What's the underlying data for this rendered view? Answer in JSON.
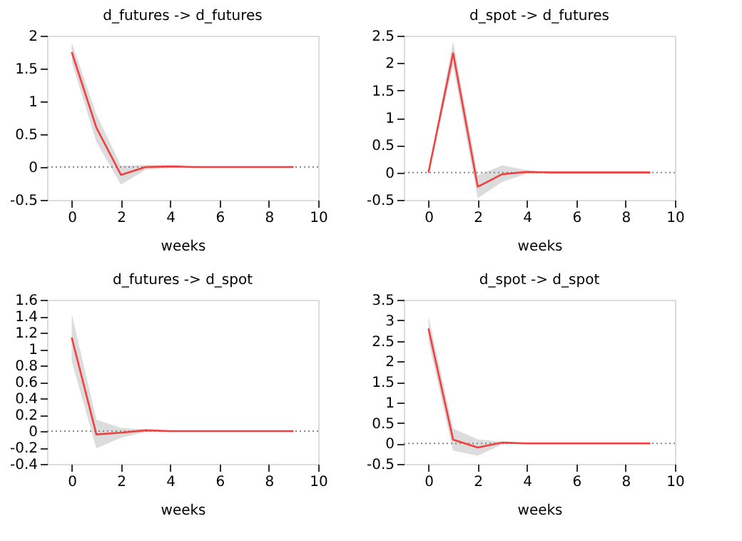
{
  "chart_data": [
    {
      "type": "line",
      "title": "d_futures -> d_futures",
      "xlabel": "weeks",
      "x": [
        0,
        1,
        2,
        3,
        4,
        5,
        6,
        7,
        8,
        9
      ],
      "xlim": [
        -1,
        10
      ],
      "xticks": [
        0,
        2,
        4,
        6,
        8,
        10
      ],
      "ylim": [
        -0.5,
        2
      ],
      "yticks": [
        -0.5,
        0,
        0.5,
        1,
        1.5,
        2
      ],
      "grid": false,
      "ref_lines": [
        {
          "axis": "y",
          "value": 0,
          "color": "#888888",
          "line_style": "dotted"
        }
      ],
      "series": [
        {
          "color": "#f04040",
          "values": [
            1.75,
            0.6,
            -0.12,
            0.0,
            0.01,
            0,
            0,
            0,
            0,
            0
          ],
          "lower": [
            1.6,
            0.38,
            -0.27,
            -0.04,
            -0.01,
            0,
            0,
            0,
            0,
            0
          ],
          "upper": [
            1.9,
            0.8,
            0.02,
            0.03,
            0.02,
            0,
            0,
            0,
            0,
            0
          ]
        }
      ]
    },
    {
      "type": "line",
      "title": "d_spot -> d_futures",
      "xlabel": "weeks",
      "x": [
        0,
        1,
        2,
        3,
        4,
        5,
        6,
        7,
        8,
        9
      ],
      "xlim": [
        -1,
        10
      ],
      "xticks": [
        0,
        2,
        4,
        6,
        8,
        10
      ],
      "ylim": [
        -0.5,
        2.5
      ],
      "yticks": [
        -0.5,
        0,
        0.5,
        1,
        1.5,
        2,
        2.5
      ],
      "grid": false,
      "ref_lines": [
        {
          "axis": "y",
          "value": 0,
          "color": "#888888",
          "line_style": "dotted"
        }
      ],
      "series": [
        {
          "color": "#f04040",
          "values": [
            0,
            2.18,
            -0.26,
            -0.03,
            0.01,
            0,
            0,
            0,
            0,
            0
          ],
          "lower": [
            0,
            1.95,
            -0.47,
            -0.17,
            -0.02,
            0,
            0,
            0,
            0,
            0
          ],
          "upper": [
            0,
            2.4,
            -0.05,
            0.13,
            0.04,
            0,
            0,
            0,
            0,
            0
          ]
        }
      ]
    },
    {
      "type": "line",
      "title": "d_futures -> d_spot",
      "xlabel": "weeks",
      "x": [
        0,
        1,
        2,
        3,
        4,
        5,
        6,
        7,
        8,
        9
      ],
      "xlim": [
        -1,
        10
      ],
      "xticks": [
        0,
        2,
        4,
        6,
        8,
        10
      ],
      "ylim": [
        -0.4,
        1.6
      ],
      "yticks": [
        -0.4,
        -0.2,
        0,
        0.2,
        0.4,
        0.6,
        0.8,
        1,
        1.2,
        1.4,
        1.6
      ],
      "grid": false,
      "ref_lines": [
        {
          "axis": "y",
          "value": 0,
          "color": "#888888",
          "line_style": "dotted"
        }
      ],
      "series": [
        {
          "color": "#f04040",
          "values": [
            1.14,
            -0.04,
            -0.02,
            0.01,
            0,
            0,
            0,
            0,
            0,
            0
          ],
          "lower": [
            0.85,
            -0.21,
            -0.08,
            -0.01,
            0,
            0,
            0,
            0,
            0,
            0
          ],
          "upper": [
            1.43,
            0.14,
            0.04,
            0.02,
            0,
            0,
            0,
            0,
            0,
            0
          ]
        }
      ]
    },
    {
      "type": "line",
      "title": "d_spot -> d_spot",
      "xlabel": "weeks",
      "x": [
        0,
        1,
        2,
        3,
        4,
        5,
        6,
        7,
        8,
        9
      ],
      "xlim": [
        -1,
        10
      ],
      "xticks": [
        0,
        2,
        4,
        6,
        8,
        10
      ],
      "ylim": [
        -0.5,
        3.5
      ],
      "yticks": [
        -0.5,
        0,
        0.5,
        1,
        1.5,
        2,
        2.5,
        3,
        3.5
      ],
      "grid": false,
      "ref_lines": [
        {
          "axis": "y",
          "value": 0,
          "color": "#888888",
          "line_style": "dotted"
        }
      ],
      "series": [
        {
          "color": "#f04040",
          "values": [
            2.8,
            0.09,
            -0.1,
            0.02,
            0,
            0,
            0,
            0,
            0,
            0
          ],
          "lower": [
            2.5,
            -0.18,
            -0.3,
            -0.02,
            0,
            0,
            0,
            0,
            0,
            0
          ],
          "upper": [
            3.1,
            0.36,
            0.1,
            0.04,
            0,
            0,
            0,
            0,
            0,
            0
          ]
        }
      ]
    }
  ]
}
